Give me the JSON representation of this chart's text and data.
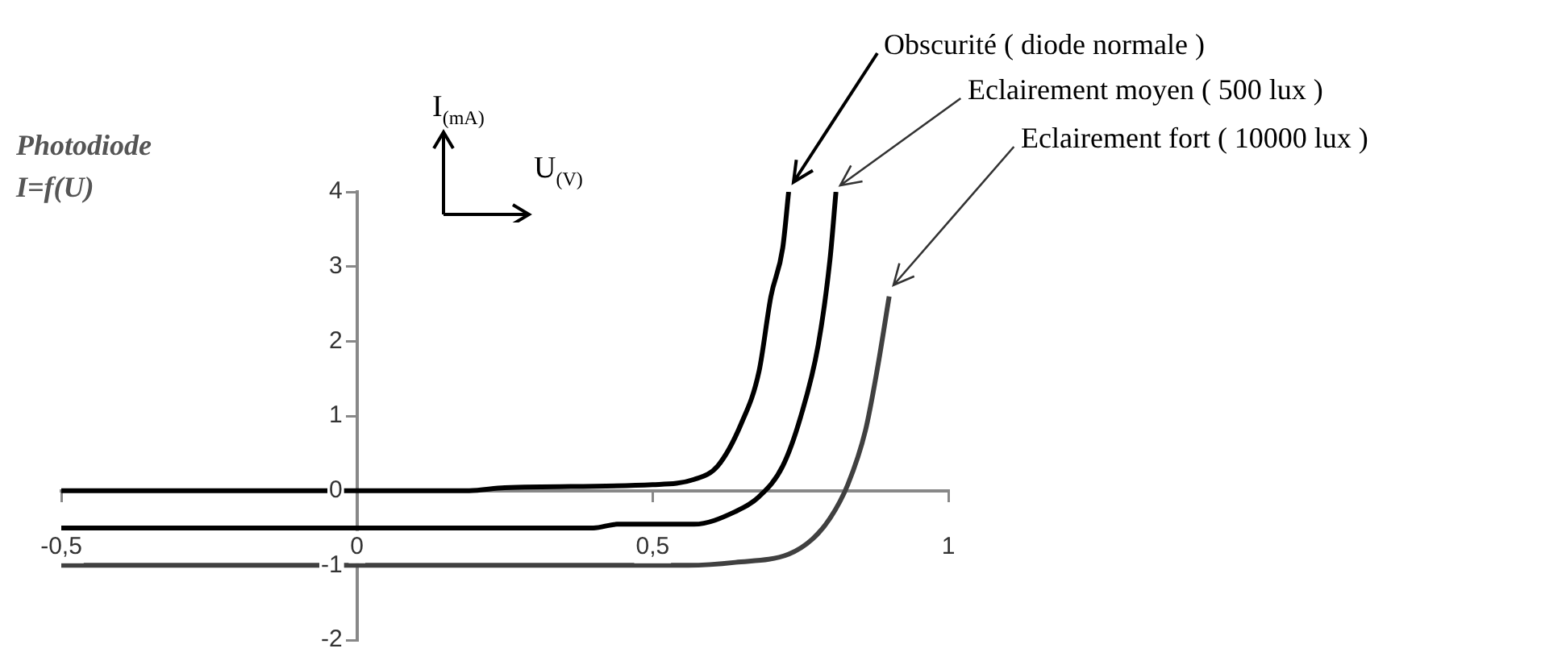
{
  "chart_data": {
    "type": "line",
    "title": "Photodiode",
    "subtitle": "I=f(U)",
    "xlabel": "U$_{(V)}$",
    "ylabel": "I$_{(mA)}$",
    "xlim": [
      -0.5,
      1
    ],
    "ylim": [
      -2,
      4
    ],
    "xticks": [
      {
        "value": -0.5,
        "label": "-0,5"
      },
      0,
      {
        "value": 0.5,
        "label": "0,5"
      },
      1
    ],
    "yticks": [
      -2,
      -1,
      0,
      1,
      2,
      3,
      4
    ],
    "grid": false,
    "legend": false,
    "marker": "none",
    "line_style": "solid",
    "series": [
      {
        "color": "#000000",
        "x": [
          -0.5,
          0.19,
          0.25,
          0.5,
          0.57,
          0.61,
          0.65,
          0.68,
          0.7,
          0.72,
          0.73
        ],
        "values": [
          0,
          0,
          0.04,
          0.08,
          0.15,
          0.33,
          0.9,
          1.6,
          2.6,
          3.25,
          4
        ]
      },
      {
        "color": "#000000",
        "x": [
          -0.5,
          0.4,
          0.44,
          0.57,
          0.64,
          0.68,
          0.72,
          0.75,
          0.78,
          0.8,
          0.81
        ],
        "values": [
          -0.5,
          -0.5,
          -0.45,
          -0.45,
          -0.28,
          -0.08,
          0.33,
          0.98,
          1.95,
          3.1,
          4
        ]
      },
      {
        "color": "#404040",
        "x": [
          -0.5,
          0.56,
          0.64,
          0.73,
          0.77,
          0.8,
          0.83,
          0.86,
          0.88,
          0.9
        ],
        "values": [
          -1,
          -1,
          -0.96,
          -0.85,
          -0.65,
          -0.37,
          0.08,
          0.81,
          1.63,
          2.6
        ]
      }
    ],
    "annotations": [
      {
        "text": "Obscurité ( diode normale )",
        "x": 0.73,
        "y": 4
      },
      {
        "text": "Eclairement moyen ( 500 lux )",
        "x": 0.81,
        "y": 4
      },
      {
        "text": "Eclairement fort ( 10000 lux )",
        "x": 0.9,
        "y": 2.6
      }
    ]
  }
}
